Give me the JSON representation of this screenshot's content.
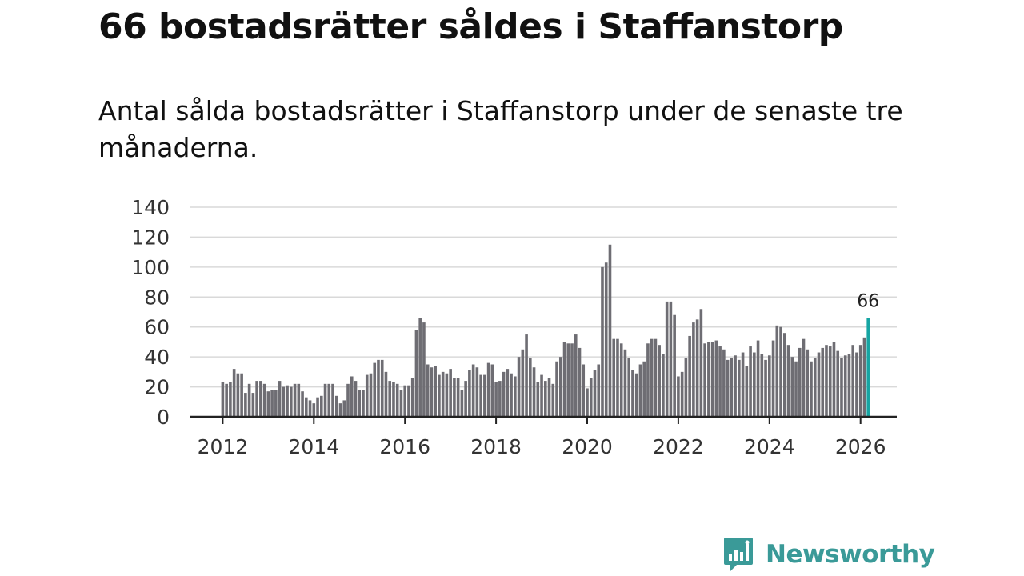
{
  "title": "66 bostadsrätter såldes i Staffanstorp",
  "subtitle": "Antal sålda bostadsrätter i Staffanstorp under de senaste tre månaderna.",
  "brand": {
    "name": "Newsworthy"
  },
  "colors": {
    "bar": "#6e6d73",
    "highlight": "#16a5a3",
    "grid": "#d9d9d9",
    "axis": "#222222",
    "brand": "#3a9a98"
  },
  "chart_data": {
    "type": "bar",
    "title": "66 bostadsrätter såldes i Staffanstorp",
    "xlabel": "",
    "ylabel": "",
    "ylim": [
      0,
      140
    ],
    "yticks": [
      0,
      20,
      40,
      60,
      80,
      100,
      120,
      140
    ],
    "xticks": [
      "2012",
      "2014",
      "2016",
      "2018",
      "2020",
      "2022",
      "2024",
      "2026"
    ],
    "start": "2012-01",
    "grid": true,
    "highlight_label": "66",
    "values": [
      23,
      22,
      23,
      32,
      29,
      29,
      16,
      22,
      16,
      24,
      24,
      22,
      17,
      18,
      18,
      24,
      20,
      21,
      20,
      22,
      22,
      17,
      13,
      11,
      9,
      13,
      14,
      22,
      22,
      22,
      14,
      9,
      11,
      22,
      27,
      24,
      18,
      18,
      28,
      29,
      36,
      38,
      38,
      30,
      24,
      23,
      22,
      18,
      21,
      21,
      26,
      58,
      66,
      63,
      35,
      33,
      34,
      28,
      30,
      29,
      32,
      26,
      26,
      18,
      24,
      31,
      35,
      33,
      28,
      28,
      36,
      35,
      23,
      24,
      30,
      32,
      29,
      27,
      40,
      45,
      55,
      39,
      33,
      23,
      28,
      24,
      26,
      22,
      37,
      40,
      50,
      49,
      49,
      55,
      46,
      35,
      19,
      26,
      31,
      35,
      100,
      103,
      115,
      52,
      52,
      49,
      45,
      39,
      31,
      29,
      35,
      37,
      49,
      52,
      52,
      48,
      42,
      77,
      77,
      68,
      27,
      30,
      39,
      54,
      63,
      65,
      72,
      49,
      50,
      50,
      51,
      47,
      45,
      38,
      39,
      41,
      38,
      43,
      34,
      47,
      43,
      51,
      42,
      38,
      41,
      51,
      61,
      60,
      56,
      48,
      40,
      37,
      46,
      52,
      45,
      37,
      39,
      43,
      46,
      48,
      47,
      50,
      44,
      39,
      41,
      42,
      48,
      43,
      48,
      53,
      66
    ]
  }
}
